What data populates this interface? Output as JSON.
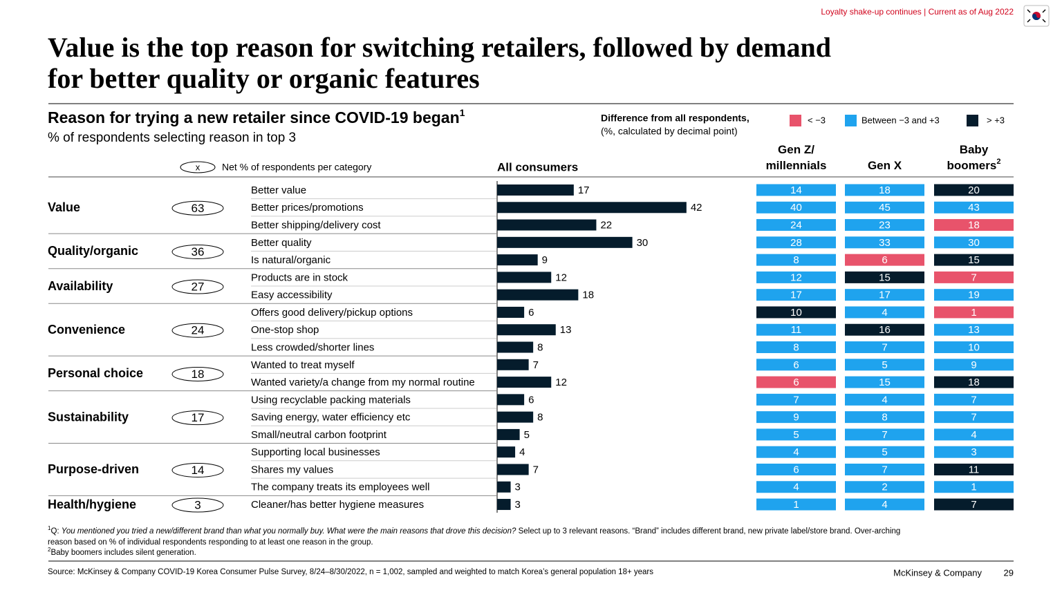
{
  "header": {
    "tag": "Loyalty shake-up continues | Current as of Aug 2022",
    "title": [
      "Value is the top reason for switching retailers, followed by demand",
      "for better quality or organic features"
    ]
  },
  "chart_data": {
    "type": "bar",
    "title": "Reason for trying a new retailer since COVID-19 began",
    "title_sup": "1",
    "subtitle": "% of respondents selecting reason in top 3",
    "key_symbol": "x",
    "key_label": "Net % of respondents per category",
    "value_header": "All consumers",
    "color": "#051c2c",
    "categories": [
      "Better value",
      "Better prices/promotions",
      "Better shipping/delivery cost",
      "Better quality",
      "Is natural/organic",
      "Products are in stock",
      "Easy accessibility",
      "Offers good delivery/pickup options",
      "One-stop shop",
      "Less crowded/shorter lines",
      "Wanted to treat myself",
      "Wanted variety/a change from my normal routine",
      "Using recyclable packing materials",
      "Saving energy, water efficiency etc",
      "Small/neutral carbon footprint",
      "Supporting local businesses",
      "Shares my values",
      "The company treats its employees well",
      "Cleaner/has better hygiene measures"
    ],
    "values": [
      17,
      42,
      22,
      30,
      9,
      12,
      18,
      6,
      13,
      8,
      7,
      12,
      6,
      8,
      5,
      4,
      7,
      3,
      3
    ],
    "groups": [
      {
        "name": "Value",
        "value": 63,
        "count": 3
      },
      {
        "name": "Quality/organic",
        "value": 36,
        "count": 2
      },
      {
        "name": "Availability",
        "value": 27,
        "count": 2
      },
      {
        "name": "Convenience",
        "value": 24,
        "count": 3
      },
      {
        "name": "Personal choice",
        "value": 18,
        "count": 2
      },
      {
        "name": "Sustainability",
        "value": 17,
        "count": 3
      },
      {
        "name": "Purpose-driven",
        "value": 14,
        "count": 3
      },
      {
        "name": "Health/hygiene",
        "value": 3,
        "count": 1
      }
    ],
    "legend": {
      "title": "Difference from all respondents,",
      "subtitle": "(%, calculated by decimal point)",
      "items": [
        {
          "label": "< −3",
          "color": "#e8536b"
        },
        {
          "label": "Between −3 and +3",
          "color": "#1fa3ee"
        },
        {
          "label": "> +3",
          "color": "#051c2c"
        }
      ]
    },
    "series": [
      {
        "name": [
          "Gen Z/",
          "millennials"
        ],
        "values": [
          14,
          40,
          24,
          28,
          8,
          12,
          17,
          10,
          11,
          8,
          6,
          6,
          7,
          9,
          5,
          4,
          6,
          4,
          1
        ],
        "levels": [
          1,
          1,
          1,
          1,
          1,
          1,
          1,
          2,
          1,
          1,
          1,
          0,
          1,
          1,
          1,
          1,
          1,
          1,
          1
        ]
      },
      {
        "name": [
          "Gen X"
        ],
        "values": [
          18,
          45,
          23,
          33,
          6,
          15,
          17,
          4,
          16,
          7,
          5,
          15,
          4,
          8,
          7,
          5,
          7,
          2,
          4
        ],
        "levels": [
          1,
          1,
          1,
          1,
          0,
          2,
          1,
          1,
          2,
          1,
          1,
          1,
          1,
          1,
          1,
          1,
          1,
          1,
          1
        ]
      },
      {
        "name": [
          "Baby",
          "boomers"
        ],
        "name_sup": "2",
        "values": [
          20,
          43,
          18,
          30,
          15,
          7,
          19,
          1,
          13,
          10,
          9,
          18,
          7,
          7,
          4,
          3,
          11,
          1,
          7
        ],
        "levels": [
          2,
          1,
          0,
          1,
          2,
          0,
          1,
          0,
          1,
          1,
          1,
          2,
          1,
          1,
          1,
          1,
          2,
          1,
          2
        ]
      }
    ]
  },
  "footer": {
    "note1_sup": "1",
    "note1_prefix": "Q: ",
    "note1_question": "You mentioned you tried a new/different brand than what you normally buy. What were the main reasons that drove this decision?",
    "note1_rest": " Select up to 3 relevant reasons. “Brand” includes different brand, new private label/store brand. Over-arching",
    "note1_line2": "reason based on % of individual respondents responding to at least one reason in the group.",
    "note2_sup": "2",
    "note2": "Baby boomers includes silent generation.",
    "source": "Source: McKinsey & Company COVID-19 Korea Consumer Pulse Survey, 8/24–8/30/2022, n = 1,002, sampled and weighted to match Korea’s general population 18+ years",
    "brand": "McKinsey & Company",
    "page": 29
  }
}
